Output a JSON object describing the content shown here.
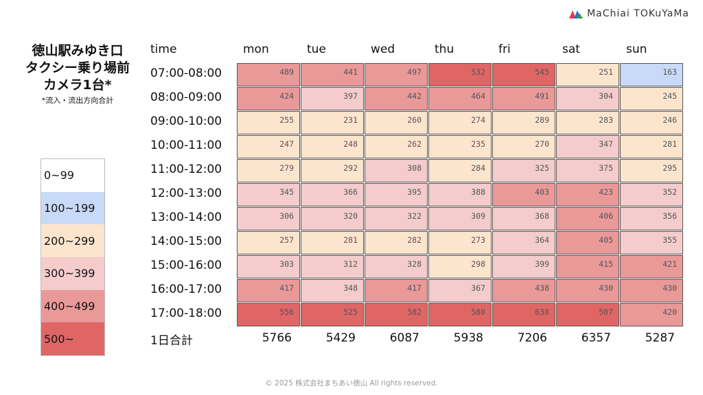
{
  "logo": {
    "text": "MaChiai TOKuYaMa"
  },
  "title": {
    "lines": [
      "徳山駅みゆき口",
      "タクシー乗り場前",
      "カメラ1台*"
    ],
    "note": "*流入・流出方向合計"
  },
  "legend": [
    {
      "label": "0~99",
      "color": "#ffffff"
    },
    {
      "label": "100~199",
      "color": "#c9daf8"
    },
    {
      "label": "200~299",
      "color": "#fce5cd"
    },
    {
      "label": "300~399",
      "color": "#f4cccc"
    },
    {
      "label": "400~499",
      "color": "#ea9999"
    },
    {
      "label": "500~",
      "color": "#e06666"
    }
  ],
  "chart_data": {
    "type": "heatmap",
    "row_header": "time",
    "columns": [
      "mon",
      "tue",
      "wed",
      "thu",
      "fri",
      "sat",
      "sun"
    ],
    "rows": [
      "07:00-08:00",
      "08:00-09:00",
      "09:00-10:00",
      "10:00-11:00",
      "11:00-12:00",
      "12:00-13:00",
      "13:00-14:00",
      "14:00-15:00",
      "15:00-16:00",
      "16:00-17:00",
      "17:00-18:00"
    ],
    "values": [
      [
        489,
        441,
        497,
        532,
        545,
        251,
        163
      ],
      [
        424,
        397,
        442,
        464,
        491,
        304,
        245
      ],
      [
        255,
        231,
        260,
        274,
        289,
        283,
        246
      ],
      [
        247,
        248,
        262,
        235,
        270,
        347,
        281
      ],
      [
        279,
        292,
        308,
        284,
        325,
        375,
        295
      ],
      [
        345,
        366,
        395,
        388,
        403,
        423,
        352
      ],
      [
        306,
        320,
        322,
        309,
        368,
        406,
        356
      ],
      [
        257,
        281,
        282,
        273,
        364,
        405,
        355
      ],
      [
        303,
        312,
        328,
        298,
        399,
        415,
        421
      ],
      [
        417,
        348,
        417,
        367,
        438,
        430,
        430
      ],
      [
        556,
        525,
        582,
        580,
        638,
        507,
        420
      ]
    ],
    "totals_label": "1日合計",
    "totals": [
      5766,
      5429,
      6087,
      5938,
      7206,
      6357,
      5287
    ]
  },
  "footer": "© 2025 株式会社まちあい徳山   All rights reserved."
}
